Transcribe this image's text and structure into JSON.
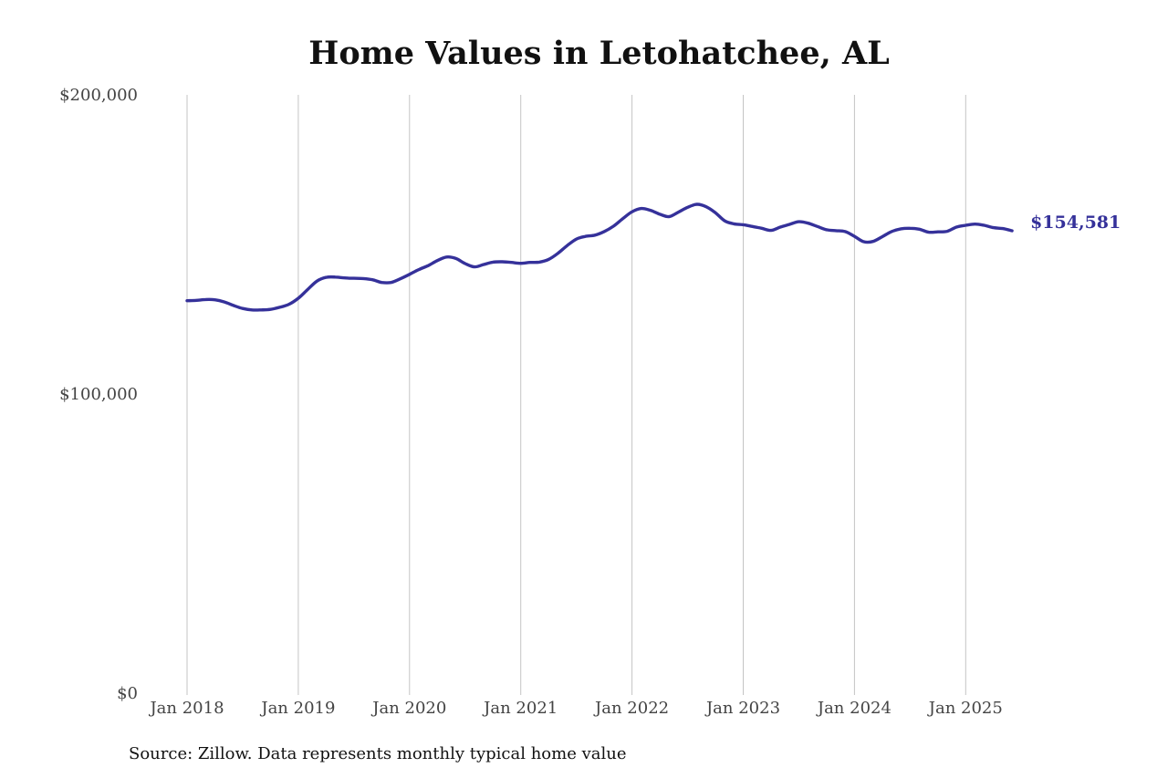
{
  "chart_data": {
    "type": "line",
    "title": "Home Values in Letohatchee, AL",
    "xlabel": "",
    "ylabel": "",
    "ylim": [
      0,
      200000
    ],
    "xlim": [
      "2018-01",
      "2025-06"
    ],
    "y_ticks": [
      0,
      100000,
      200000
    ],
    "y_tick_labels": [
      "$0",
      "$100,000",
      "$200,000"
    ],
    "x_ticks": [
      "2018-01",
      "2019-01",
      "2020-01",
      "2021-01",
      "2022-01",
      "2023-01",
      "2024-01",
      "2025-01"
    ],
    "x_tick_labels": [
      "Jan 2018",
      "Jan 2019",
      "Jan 2020",
      "Jan 2021",
      "Jan 2022",
      "Jan 2023",
      "Jan 2024",
      "Jan 2025"
    ],
    "grid": {
      "vertical": true,
      "horizontal": false
    },
    "legend": "none",
    "line_color": "#35319a",
    "grid_color": "#c4c4c4",
    "series": [
      {
        "x": [
          "2018-01",
          "2018-02",
          "2018-03",
          "2018-04",
          "2018-05",
          "2018-06",
          "2018-07",
          "2018-08",
          "2018-09",
          "2018-10",
          "2018-11",
          "2018-12",
          "2019-01",
          "2019-02",
          "2019-03",
          "2019-04",
          "2019-05",
          "2019-06",
          "2019-07",
          "2019-08",
          "2019-09",
          "2019-10",
          "2019-11",
          "2019-12",
          "2020-01",
          "2020-02",
          "2020-03",
          "2020-04",
          "2020-05",
          "2020-06",
          "2020-07",
          "2020-08",
          "2020-09",
          "2020-10",
          "2020-11",
          "2020-12",
          "2021-01",
          "2021-02",
          "2021-03",
          "2021-04",
          "2021-05",
          "2021-06",
          "2021-07",
          "2021-08",
          "2021-09",
          "2021-10",
          "2021-11",
          "2021-12",
          "2022-01",
          "2022-02",
          "2022-03",
          "2022-04",
          "2022-05",
          "2022-06",
          "2022-07",
          "2022-08",
          "2022-09",
          "2022-10",
          "2022-11",
          "2022-12",
          "2023-01",
          "2023-02",
          "2023-03",
          "2023-04",
          "2023-05",
          "2023-06",
          "2023-07",
          "2023-08",
          "2023-09",
          "2023-10",
          "2023-11",
          "2023-12",
          "2024-01",
          "2024-02",
          "2024-03",
          "2024-04",
          "2024-05",
          "2024-06",
          "2024-07",
          "2024-08",
          "2024-09",
          "2024-10",
          "2024-11",
          "2024-12",
          "2025-01",
          "2025-02",
          "2025-03",
          "2025-04",
          "2025-05",
          "2025-06"
        ],
        "values": [
          131200,
          131300,
          131600,
          131500,
          130800,
          129600,
          128600,
          128100,
          128100,
          128300,
          129000,
          130000,
          132000,
          134900,
          137700,
          139000,
          139100,
          138800,
          138700,
          138600,
          138200,
          137300,
          137300,
          138500,
          140000,
          141600,
          142900,
          144600,
          145800,
          145300,
          143600,
          142500,
          143300,
          144100,
          144200,
          144000,
          143700,
          144000,
          144100,
          145000,
          147000,
          149600,
          151800,
          152700,
          153100,
          154300,
          156100,
          158600,
          160900,
          162000,
          161400,
          160100,
          159300,
          160800,
          162400,
          163400,
          162600,
          160600,
          157900,
          156900,
          156600,
          156000,
          155400,
          154700,
          155800,
          156700,
          157600,
          157100,
          156000,
          154900,
          154600,
          154300,
          152700,
          150900,
          151000,
          152600,
          154300,
          155200,
          155400,
          155100,
          154100,
          154200,
          154400,
          155800,
          156400,
          156800,
          156400,
          155600,
          155300,
          154581
        ]
      }
    ],
    "end_label": "$154,581",
    "source_note": "Source: Zillow. Data represents monthly typical home value"
  }
}
